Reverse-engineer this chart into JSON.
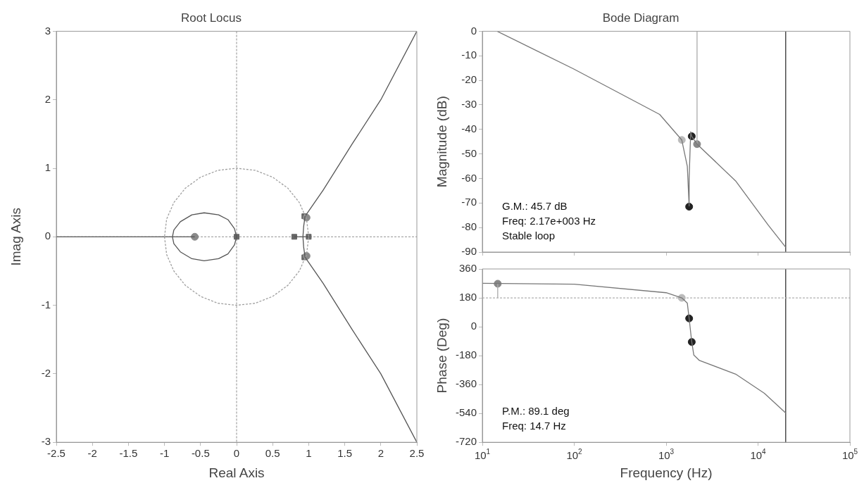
{
  "chart_data": [
    {
      "type": "line",
      "title": "Root Locus",
      "xlabel": "Real Axis",
      "ylabel": "Imag Axis",
      "xlim": [
        -2.5,
        2.5
      ],
      "ylim": [
        -3,
        3
      ],
      "xticks": [
        -2.5,
        -2,
        -1.5,
        -1,
        -0.5,
        0,
        0.5,
        1,
        1.5,
        2,
        2.5
      ],
      "yticks": [
        -3,
        -2,
        -1,
        0,
        1,
        2,
        3
      ],
      "ref_lines": [
        {
          "axis": "x",
          "value": 0,
          "color": "#a8a8a8",
          "line_style": "dotted"
        },
        {
          "axis": "y",
          "value": 0,
          "color": "#a8a8a8",
          "line_style": "dotted"
        }
      ],
      "series": [
        {
          "color": "#a0a0a0",
          "line_style": "dotted",
          "x": [
            1,
            0.97,
            0.87,
            0.71,
            0.5,
            0.26,
            0,
            -0.26,
            -0.5,
            -0.71,
            -0.87,
            -0.97,
            -1,
            null,
            -1,
            -0.97,
            -0.87,
            -0.71,
            -0.5,
            -0.26,
            0,
            0.26,
            0.5,
            0.71,
            0.87,
            0.97,
            1
          ],
          "values": [
            0,
            0.26,
            0.5,
            0.71,
            0.87,
            0.97,
            1,
            0.97,
            0.87,
            0.71,
            0.5,
            0.26,
            0,
            null,
            0,
            -0.26,
            -0.5,
            -0.71,
            -0.87,
            -0.97,
            -1,
            -0.97,
            -0.87,
            -0.71,
            -0.5,
            -0.26,
            0
          ]
        },
        {
          "color": "#555555",
          "x": [
            -2.5,
            -0.58,
            null,
            0,
            -0.03,
            -0.12,
            -0.25,
            -0.45,
            -0.62,
            -0.78,
            -0.87,
            -0.89,
            null,
            -0.89,
            -0.87,
            -0.78,
            -0.62,
            -0.45,
            -0.25,
            -0.12,
            -0.03,
            0,
            null,
            0.8,
            1.0,
            null,
            2.5,
            2.0,
            1.6,
            1.2,
            0.95,
            0.93,
            0.92,
            0.93,
            0.95,
            1.2,
            1.6,
            2.0,
            2.5
          ],
          "values": [
            0,
            0,
            null,
            0,
            0.12,
            0.25,
            0.32,
            0.35,
            0.32,
            0.22,
            0.1,
            0,
            null,
            0,
            -0.1,
            -0.22,
            -0.32,
            -0.35,
            -0.32,
            -0.25,
            -0.12,
            0,
            null,
            0,
            0,
            null,
            3,
            2.0,
            1.35,
            0.68,
            0.3,
            0.15,
            0,
            -0.15,
            -0.3,
            -0.68,
            -1.35,
            -2.0,
            -3
          ]
        },
        {
          "type": "scatter",
          "color": "#8a8a8a",
          "marker": "circle",
          "x": [
            -0.58,
            0.97,
            0.97
          ],
          "values": [
            0,
            0.28,
            -0.28
          ]
        },
        {
          "type": "scatter",
          "color": "#666666",
          "marker": "square",
          "x": [
            0,
            0.8,
            1.0,
            0.94,
            0.94
          ],
          "values": [
            0,
            0,
            0,
            0.3,
            -0.3
          ]
        }
      ]
    },
    {
      "type": "line",
      "title": "Bode Diagram",
      "ylabel": "Magnitude (dB)",
      "log": "x",
      "tick_labels": "y",
      "xlim": [
        10,
        100000
      ],
      "ylim": [
        -90,
        0
      ],
      "xticks": [
        10,
        100,
        1000,
        10000,
        100000
      ],
      "yticks": [
        -90,
        -80,
        -70,
        -60,
        -50,
        -40,
        -30,
        -20,
        -10,
        0
      ],
      "annotations": [
        "G.M.: 45.7 dB",
        "Freq: 2.17e+003 Hz",
        "Stable loop"
      ],
      "ref_lines": [
        {
          "axis": "x",
          "value": 20000,
          "color": "#333333",
          "line_style": "solid"
        }
      ],
      "series": [
        {
          "color": "#777777",
          "x": [
            14.5,
            98,
            850,
            1480,
            1700,
            1780,
            1780,
            1850,
            1900,
            2170,
            5700,
            12900,
            20000
          ],
          "values": [
            0,
            -15.3,
            -33.9,
            -44.3,
            -55,
            -71.2,
            -60,
            -41,
            -42.8,
            -46,
            -61,
            -79,
            -88
          ]
        },
        {
          "color": "#aaaaaa",
          "x": [
            2170,
            2170
          ],
          "values": [
            0,
            -46
          ]
        },
        {
          "type": "scatter",
          "color": "#bbbbbb",
          "marker": "circle",
          "x": [
            1480
          ],
          "values": [
            -44.3
          ]
        },
        {
          "type": "scatter",
          "color": "#222222",
          "marker": "circle",
          "x": [
            1900,
            1780
          ],
          "values": [
            -42.8,
            -71.5
          ]
        },
        {
          "type": "scatter",
          "color": "#888888",
          "marker": "circle",
          "x": [
            2170
          ],
          "values": [
            -46
          ]
        }
      ]
    },
    {
      "type": "line",
      "xlabel": "Frequency (Hz)",
      "ylabel": "Phase (Deg)",
      "log": "x",
      "xlim": [
        10,
        100000
      ],
      "ylim": [
        -720,
        360
      ],
      "xticks": [
        {
          "value": 10,
          "label": "10$^{1}$"
        },
        {
          "value": 100,
          "label": "10$^{2}$"
        },
        {
          "value": 1000,
          "label": "10$^{3}$"
        },
        {
          "value": 10000,
          "label": "10$^{4}$"
        },
        {
          "value": 100000,
          "label": "10$^{5}$"
        }
      ],
      "yticks": [
        -720,
        -540,
        -360,
        -180,
        0,
        180,
        360
      ],
      "annotations": [
        "P.M.: 89.1 deg",
        "Freq: 14.7 Hz"
      ],
      "ref_lines": [
        {
          "axis": "x",
          "value": 20000,
          "color": "#333333",
          "line_style": "solid"
        },
        {
          "axis": "y",
          "value": 180,
          "color": "#b0b0b0",
          "line_style": "dotted"
        }
      ],
      "series": [
        {
          "color": "#777777",
          "x": [
            10,
            100,
            1000,
            1480,
            1700,
            1780,
            1900,
            2000,
            2300,
            5700,
            11700,
            20000
          ],
          "values": [
            271,
            265,
            212,
            180,
            147,
            52,
            -95,
            -176,
            -210,
            -295,
            -414,
            -537
          ]
        },
        {
          "color": "#aaaaaa",
          "x": [
            14.7,
            14.7
          ],
          "values": [
            180,
            268
          ]
        },
        {
          "type": "scatter",
          "color": "#888888",
          "marker": "circle",
          "x": [
            14.7
          ],
          "values": [
            268
          ]
        },
        {
          "type": "scatter",
          "color": "#bbbbbb",
          "marker": "circle",
          "x": [
            1480
          ],
          "values": [
            180
          ]
        },
        {
          "type": "scatter",
          "color": "#222222",
          "marker": "circle",
          "x": [
            1780,
            1900
          ],
          "values": [
            52,
            -95
          ]
        }
      ]
    }
  ]
}
